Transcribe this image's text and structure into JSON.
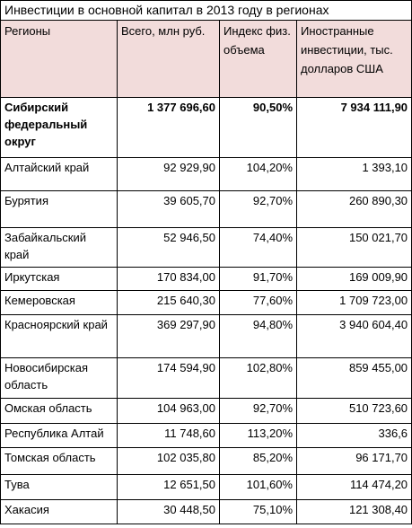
{
  "header": {
    "title": "Инвестиции в основной капитал в 2013 году в регионах"
  },
  "table": {
    "columns": [
      "Регионы",
      "Всего, млн руб.",
      "Индекс физ. объема",
      "Иностранные инвестиции, тыс. долларов США"
    ],
    "rows": [
      [
        "Сибирский федеральный округ",
        "1 377 696,60",
        "90,50%",
        "7 934 111,90"
      ],
      [
        "Алтайский край",
        "92 929,90",
        "104,20%",
        "1 393,10"
      ],
      [
        "Бурятия",
        "39 605,70",
        "92,70%",
        "260 890,30"
      ],
      [
        "Забайкальский край",
        "52 946,50",
        "74,40%",
        "150 021,70"
      ],
      [
        "Иркутская",
        "170 834,00",
        "91,70%",
        "169 009,90"
      ],
      [
        "Кемеровская",
        "215 640,30",
        "77,60%",
        "1 709 723,00"
      ],
      [
        "Красноярский край",
        "369 297,90",
        "94,80%",
        "3 940 604,40"
      ],
      [
        "Новосибирская область",
        "174 594,90",
        "102,80%",
        "859 455,00"
      ],
      [
        "Омская область",
        "104 963,00",
        "92,70%",
        "510 723,60"
      ],
      [
        "Республика Алтай",
        "11 748,60",
        "113,20%",
        "336,6"
      ],
      [
        "Томская область",
        "102 035,80",
        "85,20%",
        "96 171,70"
      ],
      [
        "Тува",
        "12 651,50",
        "101,60%",
        "114 474,20"
      ],
      [
        "Хакасия",
        "30 448,50",
        "75,10%",
        "121 308,40"
      ]
    ]
  }
}
